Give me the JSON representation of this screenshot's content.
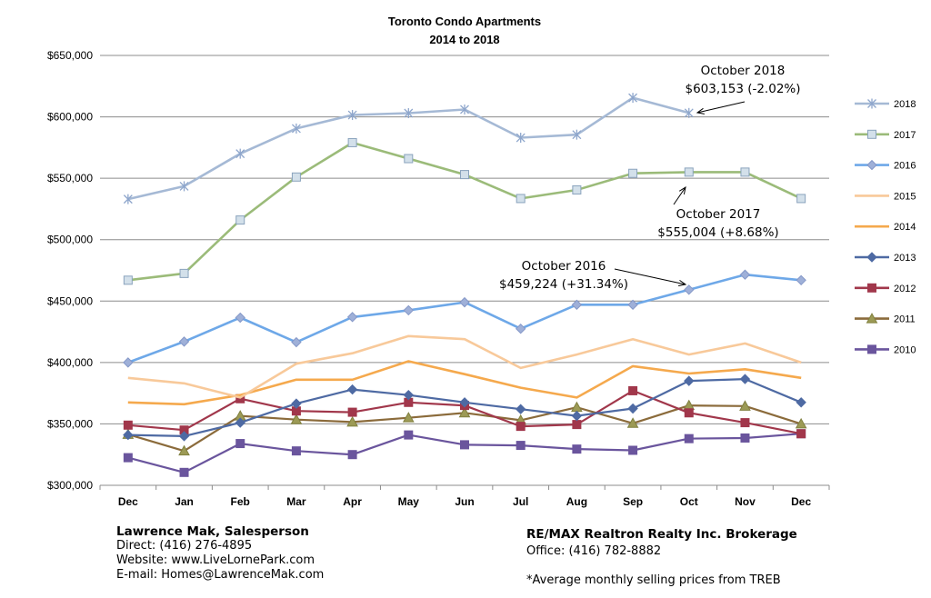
{
  "chart_data": {
    "type": "line",
    "title": "Toronto Condo Apartments",
    "subtitle": "2014 to 2018",
    "categories": [
      "Dec",
      "Jan",
      "Feb",
      "Mar",
      "Apr",
      "May",
      "Jun",
      "Jul",
      "Aug",
      "Sep",
      "Oct",
      "Nov",
      "Dec"
    ],
    "ylim": [
      300000,
      650000
    ],
    "yticks": [
      "$300,000",
      "$350,000",
      "$400,000",
      "$450,000",
      "$500,000",
      "$550,000",
      "$600,000",
      "$650,000"
    ],
    "grid": true,
    "legend_position": "right",
    "series": [
      {
        "name": "2018",
        "color": "#A5B9D5",
        "marker": "star",
        "values": [
          533000,
          543500,
          570000,
          590500,
          601500,
          603000,
          606000,
          583000,
          585500,
          615500,
          603153,
          null,
          null
        ]
      },
      {
        "name": "2017",
        "color": "#9BBB79",
        "marker": "square-light",
        "values": [
          467000,
          472500,
          516000,
          551000,
          579000,
          566000,
          553000,
          533500,
          540500,
          554000,
          555004,
          555004,
          533500
        ]
      },
      {
        "name": "2016",
        "color": "#6EA8E8",
        "marker": "diamond-light",
        "values": [
          400000,
          417000,
          436500,
          416500,
          437000,
          442500,
          449000,
          427500,
          447000,
          447000,
          459224,
          471500,
          467000
        ]
      },
      {
        "name": "2015",
        "color": "#F8C99A",
        "marker": "none",
        "values": [
          387500,
          383000,
          371500,
          399000,
          407500,
          421500,
          419000,
          395500,
          406500,
          419000,
          406500,
          415500,
          400000
        ]
      },
      {
        "name": "2014",
        "color": "#F5A94D",
        "marker": "none",
        "values": [
          367500,
          366000,
          373500,
          386000,
          386000,
          401000,
          390500,
          379500,
          371500,
          397000,
          391000,
          394500,
          387500
        ]
      },
      {
        "name": "2013",
        "color": "#4E6AA3",
        "marker": "diamond",
        "values": [
          341000,
          340000,
          351000,
          366500,
          378000,
          373500,
          367500,
          362000,
          356500,
          362500,
          385000,
          386500,
          367500
        ]
      },
      {
        "name": "2012",
        "color": "#A1374B",
        "marker": "square",
        "values": [
          349000,
          345000,
          370500,
          360500,
          359500,
          367500,
          365000,
          348000,
          349500,
          377000,
          359000,
          351000,
          342000
        ]
      },
      {
        "name": "2011",
        "color": "#8B6B3B",
        "marker": "triangle",
        "values": [
          341500,
          328000,
          356500,
          353500,
          351500,
          355000,
          359000,
          353000,
          363500,
          350500,
          365000,
          364500,
          350000
        ]
      },
      {
        "name": "2010",
        "color": "#6A559D",
        "marker": "square",
        "values": [
          322500,
          310500,
          334000,
          328000,
          325000,
          341000,
          333000,
          332500,
          329500,
          328500,
          338000,
          338500,
          342000
        ]
      }
    ],
    "annotations": [
      {
        "line1": "October 2018",
        "line2": "$603,153 (-2.02%)"
      },
      {
        "line1": "October 2017",
        "line2": "$555,004 (+8.68%)"
      },
      {
        "line1": "October 2016",
        "line2": "$459,224 (+31.34%)"
      }
    ]
  },
  "footer": {
    "left": {
      "name": "Lawrence Mak, Salesperson",
      "direct": "Direct:  (416) 276-4895",
      "website": "Website:  www.LiveLornePark.com",
      "email": "E-mail:  Homes@LawrenceMak.com"
    },
    "right": {
      "brokerage": "RE/MAX Realtron Realty Inc. Brokerage",
      "office": "Office: (416) 782-8882",
      "note": "*Average monthly selling prices from TREB"
    }
  }
}
